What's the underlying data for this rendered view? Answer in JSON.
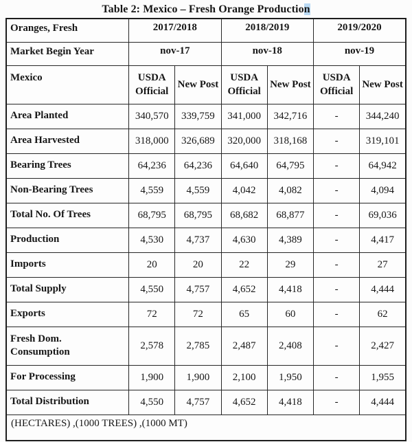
{
  "title": {
    "text": "Table 2: Mexico – Fresh Orange Productio",
    "highlight": "n"
  },
  "table": {
    "corner_label": "Oranges, Fresh",
    "years": [
      "2017/2018",
      "2018/2019",
      "2019/2020"
    ],
    "market_begin_label": "Market Begin Year",
    "market_begin_values": [
      "nov-17",
      "nov-18",
      "nov-19"
    ],
    "mexico_label": "Mexico",
    "subheaders": [
      "USDA Official",
      "New Post",
      "USDA Official",
      "New Post",
      "USDA Official",
      "New Post"
    ],
    "rows": [
      {
        "label": "Area Planted",
        "values": [
          "340,570",
          "339,759",
          "341,000",
          "342,716",
          "-",
          "344,240"
        ]
      },
      {
        "label": "Area Harvested",
        "values": [
          "318,000",
          "326,689",
          "320,000",
          "318,168",
          "-",
          "319,101"
        ]
      },
      {
        "label": "Bearing Trees",
        "values": [
          "64,236",
          "64,236",
          "64,640",
          "64,795",
          "-",
          "64,942"
        ]
      },
      {
        "label": "Non-Bearing Trees",
        "values": [
          "4,559",
          "4,559",
          "4,042",
          "4,082",
          "-",
          "4,094"
        ]
      },
      {
        "label": "Total No. Of Trees",
        "values": [
          "68,795",
          "68,795",
          "68,682",
          "68,877",
          "-",
          "69,036"
        ]
      },
      {
        "label": "Production",
        "values": [
          "4,530",
          "4,737",
          "4,630",
          "4,389",
          "-",
          "4,417"
        ]
      },
      {
        "label": "Imports",
        "values": [
          "20",
          "20",
          "22",
          "29",
          "-",
          "27"
        ]
      },
      {
        "label": "Total Supply",
        "values": [
          "4,550",
          "4,757",
          "4,652",
          "4,418",
          "-",
          "4,444"
        ]
      },
      {
        "label": "Exports",
        "values": [
          "72",
          "72",
          "65",
          "60",
          "-",
          "62"
        ]
      },
      {
        "label": "Fresh Dom.\nConsumption",
        "values": [
          "2,578",
          "2,785",
          "2,487",
          "2,408",
          "-",
          "2,427"
        ]
      },
      {
        "label": "For Processing",
        "values": [
          "1,900",
          "1,900",
          "2,100",
          "1,950",
          "-",
          "1,955"
        ]
      },
      {
        "label": "Total Distribution",
        "values": [
          "4,550",
          "4,757",
          "4,652",
          "4,418",
          "-",
          "4,444"
        ]
      }
    ],
    "footnote": "(HECTARES) ,(1000 TREES) ,(1000 MT)"
  }
}
